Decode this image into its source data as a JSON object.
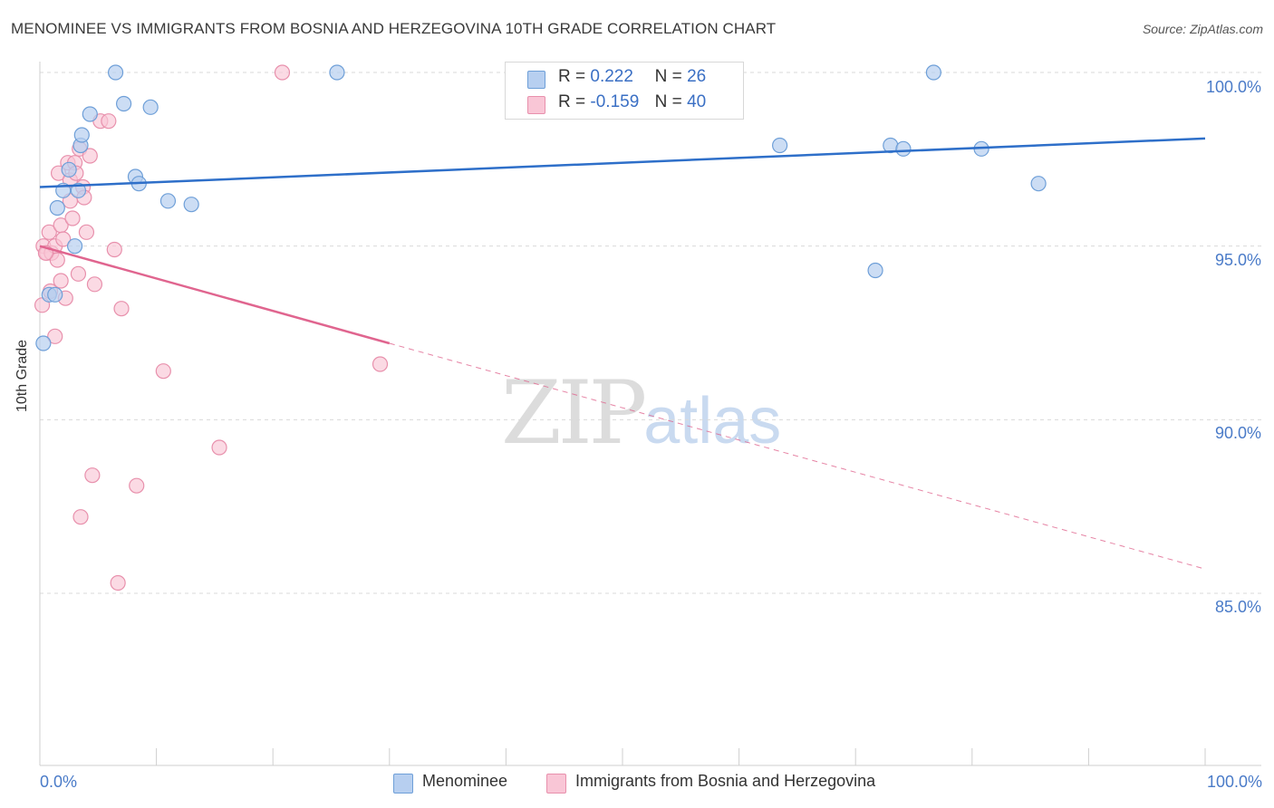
{
  "header": {
    "title": "MENOMINEE VS IMMIGRANTS FROM BOSNIA AND HERZEGOVINA 10TH GRADE CORRELATION CHART",
    "source": "Source: ZipAtlas.com"
  },
  "watermark": {
    "part1": "ZIP",
    "part2": "atlas"
  },
  "legend": {
    "rows": [
      {
        "r_label": "R =",
        "r_value": "0.222",
        "n_label": "N =",
        "n_value": "26"
      },
      {
        "r_label": "R =",
        "r_value": "-0.159",
        "n_label": "N =",
        "n_value": "40"
      }
    ]
  },
  "bottom_legend": {
    "series1": "Menominee",
    "series2": "Immigrants from Bosnia and Herzegovina"
  },
  "colors": {
    "blue_fill": "#b7cff0",
    "blue_stroke": "#6e9fd8",
    "blue_line": "#2e6fc9",
    "pink_fill": "#f9c6d6",
    "pink_stroke": "#e890ac",
    "pink_line": "#e0658f",
    "grid": "#d9d9d9",
    "axis_text": "#4a7bc8"
  },
  "chart_data": {
    "type": "scatter",
    "title": "MENOMINEE VS IMMIGRANTS FROM BOSNIA AND HERZEGOVINA 10TH GRADE CORRELATION CHART",
    "xlabel": "",
    "ylabel": "10th Grade",
    "xlim": [
      0,
      100
    ],
    "ylim": [
      80,
      101
    ],
    "x_tick_labels": [
      "0.0%",
      "100.0%"
    ],
    "y_ticks": [
      85,
      90,
      95,
      100
    ],
    "y_tick_labels": [
      "85.0%",
      "90.0%",
      "95.0%",
      "100.0%"
    ],
    "grid": true,
    "legend_placement": "bottom",
    "series": [
      {
        "name": "Menominee",
        "r": 0.222,
        "n": 26,
        "points": [
          [
            0.3,
            92.2
          ],
          [
            0.8,
            93.6
          ],
          [
            1.3,
            93.6
          ],
          [
            1.5,
            96.1
          ],
          [
            2.0,
            96.6
          ],
          [
            2.5,
            97.2
          ],
          [
            3.0,
            95.0
          ],
          [
            3.3,
            96.6
          ],
          [
            3.5,
            97.9
          ],
          [
            3.6,
            98.2
          ],
          [
            4.3,
            98.8
          ],
          [
            6.5,
            100.0
          ],
          [
            7.2,
            99.1
          ],
          [
            8.2,
            97.0
          ],
          [
            8.5,
            96.8
          ],
          [
            9.5,
            99.0
          ],
          [
            11.0,
            96.3
          ],
          [
            13.0,
            96.2
          ],
          [
            25.5,
            100.0
          ],
          [
            63.5,
            97.9
          ],
          [
            71.7,
            94.3
          ],
          [
            73.0,
            97.9
          ],
          [
            74.1,
            97.8
          ],
          [
            76.7,
            100.0
          ],
          [
            80.8,
            97.8
          ],
          [
            85.7,
            96.8
          ]
        ],
        "trend": {
          "x": [
            0,
            100
          ],
          "y": [
            96.7,
            98.1
          ]
        }
      },
      {
        "name": "Immigrants from Bosnia and Herzegovina",
        "r": -0.159,
        "n": 40,
        "points": [
          [
            0.2,
            93.3
          ],
          [
            0.3,
            95.0
          ],
          [
            0.6,
            94.8
          ],
          [
            0.8,
            95.4
          ],
          [
            0.9,
            93.7
          ],
          [
            1.0,
            94.8
          ],
          [
            1.3,
            95.0
          ],
          [
            1.3,
            92.4
          ],
          [
            1.5,
            94.6
          ],
          [
            1.6,
            97.1
          ],
          [
            1.8,
            94.0
          ],
          [
            1.8,
            95.6
          ],
          [
            2.0,
            95.2
          ],
          [
            2.2,
            93.5
          ],
          [
            2.4,
            97.4
          ],
          [
            2.6,
            96.9
          ],
          [
            2.8,
            95.8
          ],
          [
            3.0,
            97.4
          ],
          [
            3.1,
            97.1
          ],
          [
            3.3,
            94.2
          ],
          [
            3.4,
            97.8
          ],
          [
            3.5,
            87.2
          ],
          [
            3.7,
            96.7
          ],
          [
            3.8,
            96.4
          ],
          [
            4.0,
            95.4
          ],
          [
            4.3,
            97.6
          ],
          [
            4.5,
            88.4
          ],
          [
            4.7,
            93.9
          ],
          [
            5.2,
            98.6
          ],
          [
            5.9,
            98.6
          ],
          [
            6.4,
            94.9
          ],
          [
            6.7,
            85.3
          ],
          [
            7.0,
            93.2
          ],
          [
            8.3,
            88.1
          ],
          [
            10.6,
            91.4
          ],
          [
            15.4,
            89.2
          ],
          [
            20.8,
            100.0
          ],
          [
            29.2,
            91.6
          ],
          [
            0.5,
            94.8
          ],
          [
            2.6,
            96.3
          ]
        ],
        "trend": {
          "x": [
            0,
            30
          ],
          "y": [
            95.0,
            92.2
          ]
        },
        "trend_extension": {
          "x": [
            30,
            100
          ],
          "y": [
            92.2,
            85.7
          ]
        }
      }
    ]
  }
}
